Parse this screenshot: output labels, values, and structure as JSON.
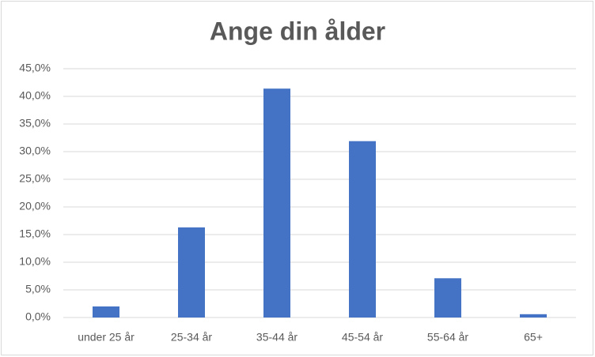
{
  "chart_data": {
    "type": "bar",
    "title": "Ange din ålder",
    "categories": [
      "under 25 år",
      "25-34 år",
      "35-44 år",
      "45-54 år",
      "55-64 år",
      "65+"
    ],
    "values": [
      2.0,
      16.3,
      41.4,
      31.9,
      7.1,
      0.6
    ],
    "color": "#4472c4",
    "ylim": [
      0,
      45
    ],
    "yticks": [
      {
        "value": 0,
        "label": "0,0%"
      },
      {
        "value": 5,
        "label": "5,0%"
      },
      {
        "value": 10,
        "label": "10,0%"
      },
      {
        "value": 15,
        "label": "15,0%"
      },
      {
        "value": 20,
        "label": "20,0%"
      },
      {
        "value": 25,
        "label": "25,0%"
      },
      {
        "value": 30,
        "label": "30,0%"
      },
      {
        "value": 35,
        "label": "35,0%"
      },
      {
        "value": 40,
        "label": "40,0%"
      },
      {
        "value": 45,
        "label": "45,0%"
      }
    ],
    "grid": true
  }
}
